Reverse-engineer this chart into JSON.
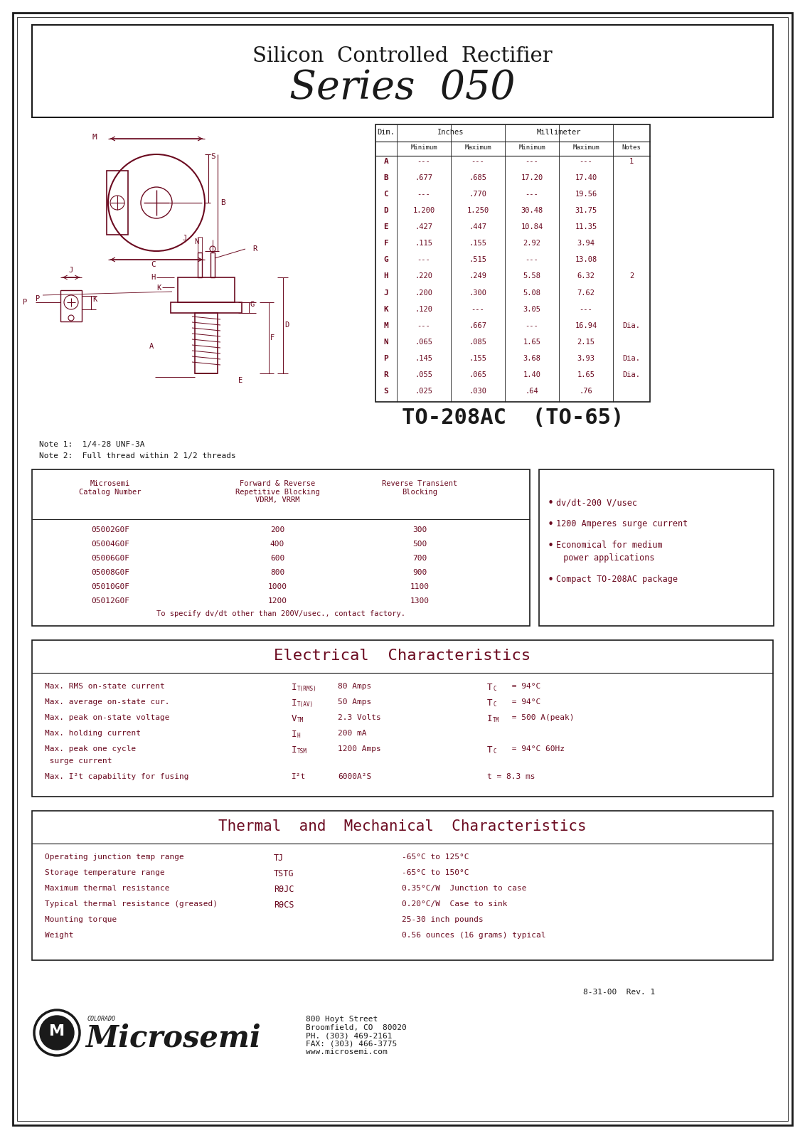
{
  "bg_color": "#ffffff",
  "dark_red": "#6b0a20",
  "black": "#1a1a1a",
  "title_line1": "Silicon  Controlled  Rectifier",
  "title_line2": "Series  050",
  "dim_table_rows": [
    [
      "A",
      "---",
      "---",
      "---",
      "---",
      "1"
    ],
    [
      "B",
      ".677",
      ".685",
      "17.20",
      "17.40",
      ""
    ],
    [
      "C",
      "---",
      ".770",
      "---",
      "19.56",
      ""
    ],
    [
      "D",
      "1.200",
      "1.250",
      "30.48",
      "31.75",
      ""
    ],
    [
      "E",
      ".427",
      ".447",
      "10.84",
      "11.35",
      ""
    ],
    [
      "F",
      ".115",
      ".155",
      "2.92",
      "3.94",
      ""
    ],
    [
      "G",
      "---",
      ".515",
      "---",
      "13.08",
      ""
    ],
    [
      "H",
      ".220",
      ".249",
      "5.58",
      "6.32",
      "2"
    ],
    [
      "J",
      ".200",
      ".300",
      "5.08",
      "7.62",
      ""
    ],
    [
      "K",
      ".120",
      "---",
      "3.05",
      "---",
      ""
    ],
    [
      "M",
      "---",
      ".667",
      "---",
      "16.94",
      "Dia."
    ],
    [
      "N",
      ".065",
      ".085",
      "1.65",
      "2.15",
      ""
    ],
    [
      "P",
      ".145",
      ".155",
      "3.68",
      "3.93",
      "Dia."
    ],
    [
      "R",
      ".055",
      ".065",
      "1.40",
      "1.65",
      "Dia."
    ],
    [
      "S",
      ".025",
      ".030",
      ".64",
      ".76",
      ""
    ]
  ],
  "package_label": "TO-208AC  (TO-65)",
  "note1": "Note 1:  1/4-28 UNF-3A",
  "note2": "Note 2:  Full thread within 2 1/2 threads",
  "catalog_rows": [
    [
      "05002G0F",
      "200",
      "300"
    ],
    [
      "05004G0F",
      "400",
      "500"
    ],
    [
      "05006G0F",
      "600",
      "700"
    ],
    [
      "05008G0F",
      "800",
      "900"
    ],
    [
      "05010G0F",
      "1000",
      "1100"
    ],
    [
      "05012G0F",
      "1200",
      "1300"
    ]
  ],
  "catalog_footnote": "To specify dv/dt other than 200V/usec., contact factory.",
  "features": [
    "dv/dt-200 V/usec",
    "1200 Amperes surge current",
    "Economical for medium",
    "  power applications",
    "Compact TO-208AC package"
  ],
  "elec_title": "Electrical  Characteristics",
  "thermal_title": "Thermal  and  Mechanical  Characteristics",
  "thermal_rows": [
    [
      "Operating junction temp range",
      "TJ",
      "-65°C to 125°C"
    ],
    [
      "Storage temperature range",
      "TSTG",
      "-65°C to 150°C"
    ],
    [
      "Maximum thermal resistance",
      "RθJC",
      "0.35°C/W  Junction to case"
    ],
    [
      "Typical thermal resistance (greased)",
      "RθCS",
      "0.20°C/W  Case to sink"
    ],
    [
      "Mounting torque",
      "",
      "25-30 inch pounds"
    ],
    [
      "Weight",
      "",
      "0.56 ounces (16 grams) typical"
    ]
  ],
  "company_name": "Microsemi",
  "company_state": "COLORADO",
  "company_address": "800 Hoyt Street\nBroomfield, CO  80020\nPH. (303) 469-2161\nFAX: (303) 466-3775\nwww.microsemi.com",
  "revision": "8-31-00  Rev. 1"
}
